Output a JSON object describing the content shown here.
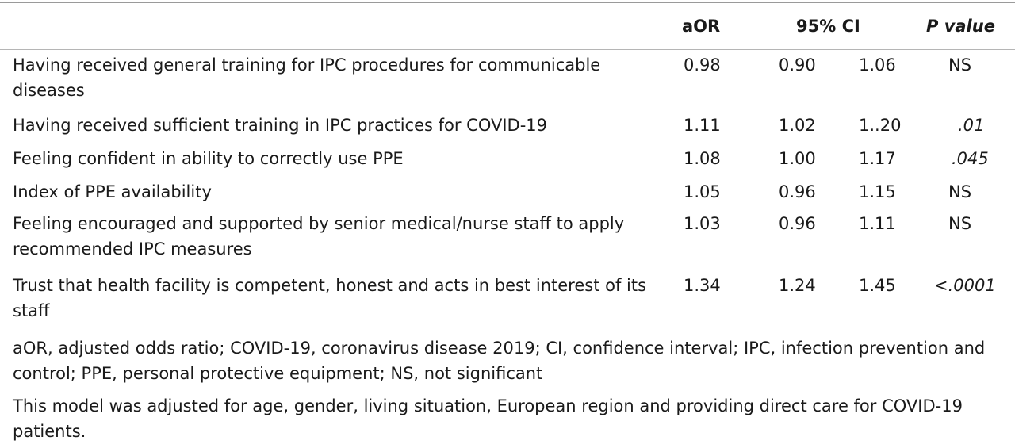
{
  "header": {
    "aor": "aOR",
    "ci": "95% CI",
    "p": "P value"
  },
  "rows": [
    {
      "label": "Having received general training for IPC procedures for communicable diseases",
      "aor": "0.98",
      "ci_low": "0.90",
      "ci_high": "1.06",
      "p": "NS"
    },
    {
      "label": "Having received sufficient training in IPC practices for COVID-19",
      "aor": "1.11",
      "ci_low": "1.02",
      "ci_high": "1..20",
      "p": ".01"
    },
    {
      "label": "Feeling confident in ability to correctly use PPE",
      "aor": "1.08",
      "ci_low": "1.00",
      "ci_high": "1.17",
      "p": ".045"
    },
    {
      "label": "Index of PPE availability",
      "aor": "1.05",
      "ci_low": "0.96",
      "ci_high": "1.15",
      "p": "NS"
    },
    {
      "label": "Feeling encouraged and supported by senior medical/nurse staff to apply recommended IPC measures",
      "aor": "1.03",
      "ci_low": "0.96",
      "ci_high": "1.11",
      "p": "NS"
    },
    {
      "label": "Trust that health facility is competent, honest and acts in best interest of its staff",
      "aor": "1.34",
      "ci_low": "1.24",
      "ci_high": "1.45",
      "p": "<.0001"
    }
  ],
  "notes": {
    "abbreviations": "aOR, adjusted odds ratio; COVID-19, coronavirus disease 2019; CI, confidence interval; IPC, infection prevention and control; PPE, personal protective equipment; NS, not significant",
    "adjustment": "This model was adjusted for age, gender, living situation, European region and providing direct care for COVID-19 patients."
  }
}
